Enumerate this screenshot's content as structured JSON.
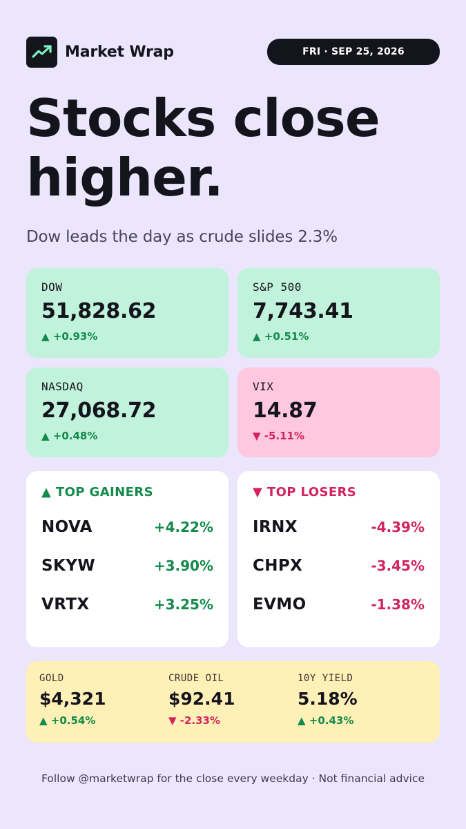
{
  "brand": {
    "name": "Market Wrap",
    "icon": "trend-line-icon",
    "accent": "#7ef2c0"
  },
  "date": "FRI · SEP 25, 2026",
  "headline": {
    "line1": "Stocks close",
    "line2": "higher."
  },
  "subhead": "Dow leads the day as crude slides 2.3%",
  "indices": [
    {
      "label": "DOW",
      "value": "51,828.62",
      "change": "▲ +0.93%",
      "direction": "up"
    },
    {
      "label": "S&P 500",
      "value": "7,743.41",
      "change": "▲ +0.51%",
      "direction": "up"
    },
    {
      "label": "NASDAQ",
      "value": "27,068.72",
      "change": "▲ +0.48%",
      "direction": "up"
    },
    {
      "label": "VIX",
      "value": "14.87",
      "change": "▼ -5.11%",
      "direction": "down"
    }
  ],
  "gainers": {
    "title": "▲ TOP GAINERS",
    "rows": [
      {
        "ticker": "NOVA",
        "change": "+4.22%"
      },
      {
        "ticker": "SKYW",
        "change": "+3.90%"
      },
      {
        "ticker": "VRTX",
        "change": "+3.25%"
      }
    ]
  },
  "losers": {
    "title": "▼ TOP LOSERS",
    "rows": [
      {
        "ticker": "IRNX",
        "change": "-4.39%"
      },
      {
        "ticker": "CHPX",
        "change": "-3.45%"
      },
      {
        "ticker": "EVMO",
        "change": "-1.38%"
      }
    ]
  },
  "commodities": [
    {
      "label": "GOLD",
      "value": "$4,321",
      "change": "▲ +0.54%",
      "direction": "up"
    },
    {
      "label": "CRUDE OIL",
      "value": "$92.41",
      "change": "▼ -2.33%",
      "direction": "down"
    },
    {
      "label": "10Y YIELD",
      "value": "5.18%",
      "change": "▲ +0.43%",
      "direction": "up"
    }
  ],
  "footer": "Follow @marketwrap for the close every weekday · Not financial advice",
  "colors": {
    "background": "#ece6fd",
    "up": "#128a4a",
    "down": "#d2235c",
    "up_tile": "#c1f2db",
    "down_tile": "#ffc8de",
    "commodity_panel": "#fff0b8"
  }
}
